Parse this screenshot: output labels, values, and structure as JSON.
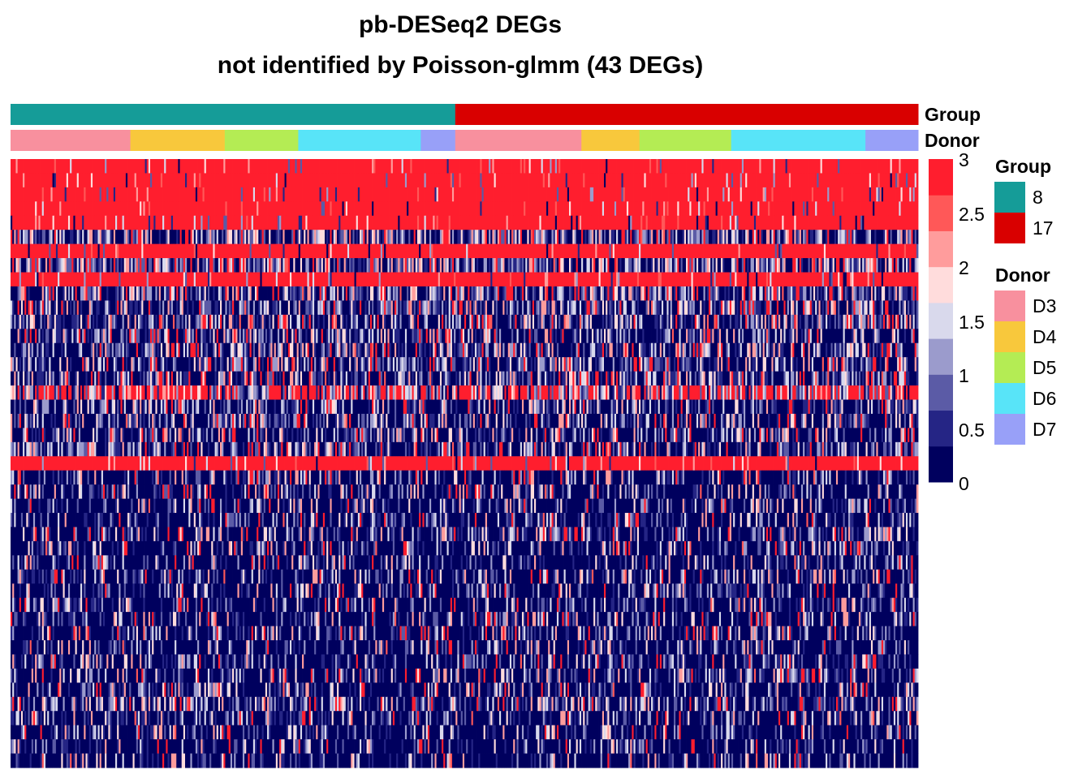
{
  "title": {
    "line1": "pb-DESeq2 DEGs",
    "line2": "not identified by Poisson-glmm (43 DEGs)"
  },
  "annotation_labels": {
    "group": "Group",
    "donor": "Donor"
  },
  "colors": {
    "group_8": "#159C98",
    "group_17": "#D90000",
    "D3": "#F8909E",
    "D4": "#F8C83C",
    "D5": "#B4EC54",
    "D6": "#58E4F8",
    "D7": "#98A0F8",
    "scale": [
      "#00005E",
      "#252585",
      "#5B5BA6",
      "#9B9BCC",
      "#D9D9EC",
      "#FFDCDC",
      "#FF9C9C",
      "#FF5858",
      "#FF1E2E"
    ]
  },
  "chart_data": {
    "type": "heatmap",
    "title": "pb-DESeq2 DEGs\nnot identified by Poisson-glmm (43 DEGs)",
    "n_genes": 43,
    "value_range": [
      0,
      3
    ],
    "color_scale_ticks": [
      "0",
      "0.5",
      "1",
      "1.5",
      "2",
      "2.5",
      "3"
    ],
    "column_annotations": {
      "Group": [
        {
          "label": "8",
          "fraction": 0.49
        },
        {
          "label": "17",
          "fraction": 0.51
        }
      ],
      "Donor": [
        {
          "group": "8",
          "donor": "D3",
          "fraction": 0.132
        },
        {
          "group": "8",
          "donor": "D4",
          "fraction": 0.104
        },
        {
          "group": "8",
          "donor": "D5",
          "fraction": 0.081
        },
        {
          "group": "8",
          "donor": "D6",
          "fraction": 0.135
        },
        {
          "group": "8",
          "donor": "D7",
          "fraction": 0.038
        },
        {
          "group": "17",
          "donor": "D3",
          "fraction": 0.139
        },
        {
          "group": "17",
          "donor": "D4",
          "fraction": 0.064
        },
        {
          "group": "17",
          "donor": "D5",
          "fraction": 0.101
        },
        {
          "group": "17",
          "donor": "D6",
          "fraction": 0.148
        },
        {
          "group": "17",
          "donor": "D7",
          "fraction": 0.058
        }
      ]
    },
    "row_mean_levels": [
      2.8,
      2.8,
      2.7,
      2.7,
      2.7,
      1.0,
      2.9,
      1.0,
      2.95,
      0.9,
      0.7,
      0.7,
      0.6,
      0.7,
      0.6,
      0.6,
      1.6,
      0.5,
      0.5,
      0.5,
      0.6,
      2.95,
      0.3,
      0.3,
      0.3,
      0.3,
      0.3,
      0.3,
      0.3,
      0.3,
      0.3,
      0.3,
      0.3,
      0.3,
      0.3,
      0.3,
      0.3,
      0.3,
      0.6,
      0.3,
      0.2,
      0.2,
      0.2
    ],
    "legends": [
      {
        "title": "Group",
        "entries": [
          "8",
          "17"
        ]
      },
      {
        "title": "Donor",
        "entries": [
          "D3",
          "D4",
          "D5",
          "D6",
          "D7"
        ]
      }
    ]
  }
}
